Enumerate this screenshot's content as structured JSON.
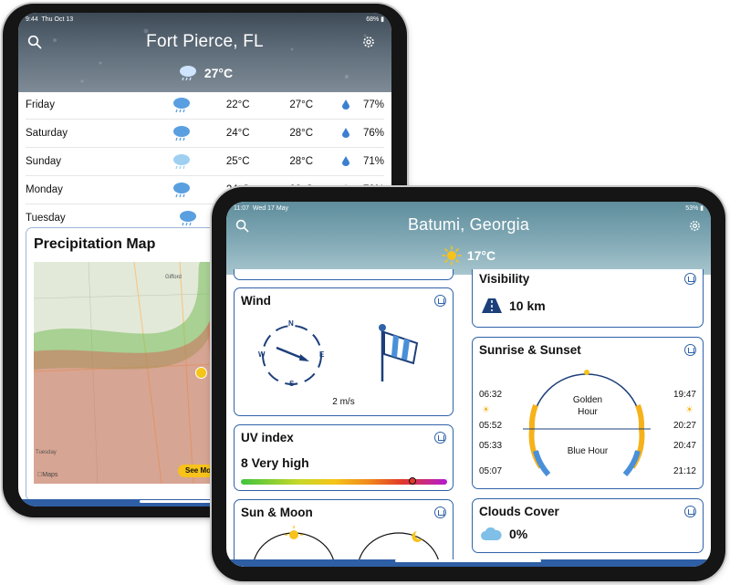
{
  "left_device": {
    "status": {
      "time": "9:44",
      "date": "Thu Oct 13",
      "battery": "68%"
    },
    "header": {
      "city": "Fort Pierce, FL",
      "temperature": "27°C"
    },
    "forecast": [
      {
        "day": "Friday",
        "min": "22°C",
        "max": "27°C",
        "precip": "77%"
      },
      {
        "day": "Saturday",
        "min": "24°C",
        "max": "28°C",
        "precip": "76%"
      },
      {
        "day": "Sunday",
        "min": "25°C",
        "max": "28°C",
        "precip": "71%"
      },
      {
        "day": "Monday",
        "min": "24°C",
        "max": "28°C",
        "precip": "73%"
      },
      {
        "day": "Tuesday"
      }
    ],
    "precip_map": {
      "title": "Precipitation Map",
      "labels": {
        "gifford": "Gifford",
        "tuesday": "Tuesday",
        "maps": "Maps",
        "see_more": "See Mo"
      }
    }
  },
  "right_device": {
    "status": {
      "time": "11:07",
      "date": "Wed 17 May",
      "battery": "53%"
    },
    "header": {
      "city": "Batumi, Georgia",
      "temperature": "17°C"
    },
    "wind": {
      "title": "Wind",
      "speed": "2 m/s",
      "compass": {
        "n": "N",
        "e": "E",
        "s": "S",
        "w": "W"
      }
    },
    "visibility": {
      "title": "Visibility",
      "value": "10 km"
    },
    "uv": {
      "title": "UV index",
      "value": "8 Very high",
      "level": 0.83
    },
    "sunrise": {
      "title": "Sunrise & Sunset",
      "left_times": [
        "06:32",
        "05:52",
        "05:33",
        "05:07"
      ],
      "right_times": [
        "19:47",
        "20:27",
        "20:47",
        "21:12"
      ],
      "golden": "Golden Hour",
      "blue": "Blue Hour"
    },
    "sun_moon": {
      "title": "Sun & Moon"
    },
    "clouds": {
      "title": "Clouds Cover",
      "value": "0%"
    }
  },
  "colors": {
    "accent": "#2f62a8",
    "golden": "#f5b21b",
    "blue_hour": "#4a90d9",
    "drop": "#3b7fd0"
  }
}
